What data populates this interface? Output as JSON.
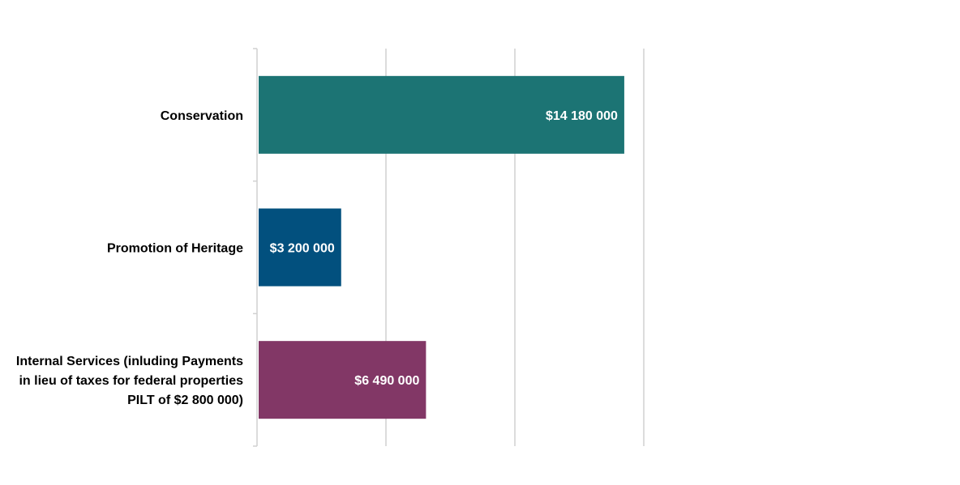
{
  "chart_data": {
    "type": "bar",
    "orientation": "horizontal",
    "categories": [
      [
        "Conservation"
      ],
      [
        "Promotion of Heritage"
      ],
      [
        "Internal Services (inluding Payments",
        "in lieu of taxes for federal properties",
        "PILT of $2 800 000)"
      ]
    ],
    "values": [
      14180000,
      3200000,
      6490000
    ],
    "value_labels": [
      "$14 180 000",
      "$3 200 000",
      "$6 490 000"
    ],
    "colors": [
      "#1c7474",
      "#02507e",
      "#823766"
    ],
    "xlim": [
      0,
      15000000
    ],
    "grid": true,
    "legend": "none"
  }
}
